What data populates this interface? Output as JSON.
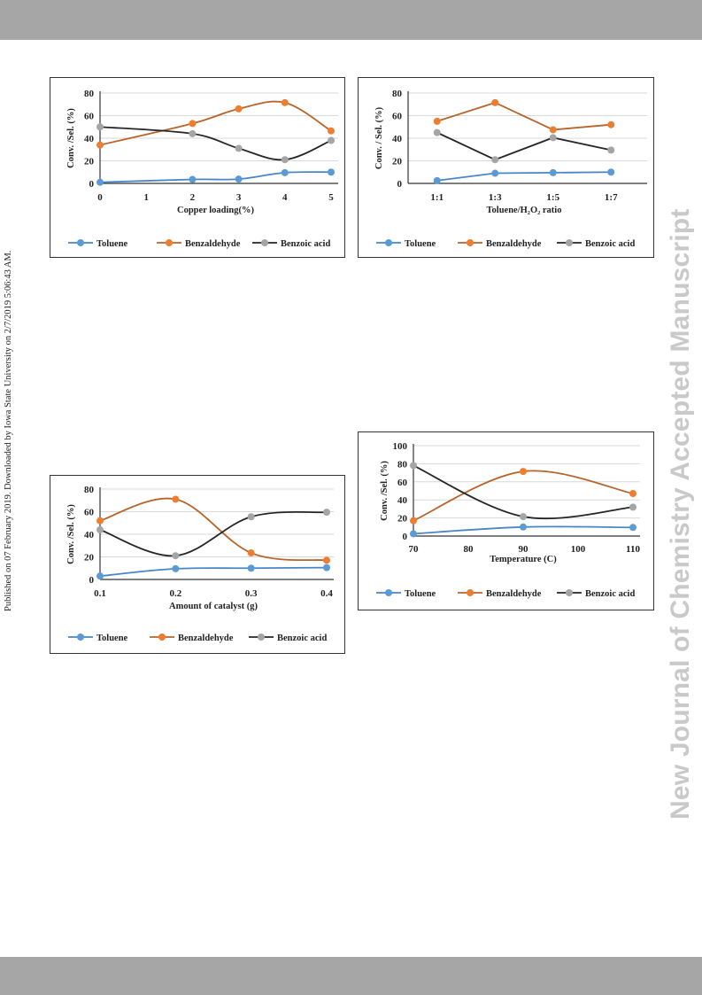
{
  "sidebar": {
    "published_note": "Published on 07 February 2019. Downloaded by Iowa State University on 2/7/2019 5:06:43 AM.",
    "watermark": "New Journal of Chemistry Accepted Manuscript"
  },
  "colors": {
    "toluene": "#5b9bd5",
    "benzaldehyde": "#ed7d31",
    "benzoic_acid": "#a5a5a5",
    "benzoic_acid_line": "#262626",
    "toluene_line": "#4a86c5",
    "benzaldehyde_line": "#b8642a"
  },
  "chart_data": [
    {
      "type": "line",
      "xlabel": "Copper loading(%)",
      "ylabel": "Conv. /Sel.  (%)",
      "x_ticks": [
        "0",
        "1",
        "2",
        "3",
        "4",
        "5"
      ],
      "y_ticks": [
        "0",
        "20",
        "40",
        "60",
        "80"
      ],
      "xlim": [
        0,
        5
      ],
      "ylim": [
        0,
        80
      ],
      "smooth": true,
      "series": [
        {
          "name": "Toluene",
          "x": [
            0,
            2,
            3,
            4,
            5
          ],
          "values": [
            1,
            3.5,
            3.8,
            9.5,
            10
          ]
        },
        {
          "name": "Benzaldehyde",
          "x": [
            0,
            2,
            3,
            4,
            5
          ],
          "values": [
            34,
            53,
            66,
            71.5,
            46.5
          ]
        },
        {
          "name": "Benzoic acid",
          "x": [
            0,
            2,
            3,
            4,
            5
          ],
          "values": [
            50,
            44,
            31,
            21,
            38
          ]
        }
      ]
    },
    {
      "type": "line",
      "xlabel": "Toluene/H₂O₂  ratio",
      "ylabel": "Conv. / Sel. (%)",
      "x_ticks": [
        "1:1",
        "1:3",
        "1:5",
        "1:7"
      ],
      "y_ticks": [
        "0",
        "20",
        "40",
        "60",
        "80"
      ],
      "xlim": [
        0.5,
        4.5
      ],
      "ylim": [
        0,
        80
      ],
      "smooth": false,
      "series": [
        {
          "name": "Toluene",
          "x": [
            1,
            2,
            3,
            4
          ],
          "values": [
            2.5,
            9,
            9.5,
            10
          ]
        },
        {
          "name": "Benzaldehyde",
          "x": [
            1,
            2,
            3,
            4
          ],
          "values": [
            55,
            71.5,
            47.5,
            52
          ]
        },
        {
          "name": "Benzoic acid",
          "x": [
            1,
            2,
            3,
            4
          ],
          "values": [
            45,
            21,
            40.5,
            29.5
          ]
        }
      ]
    },
    {
      "type": "line",
      "xlabel": "Amount of catalyst (g)",
      "ylabel": "Conv. /Sel.  (%)",
      "x_ticks": [
        "0.1",
        "0.2",
        "0.3",
        "0.4"
      ],
      "y_ticks": [
        "0",
        "20",
        "40",
        "60",
        "80"
      ],
      "xlim": [
        0.1,
        0.4
      ],
      "ylim": [
        0,
        80
      ],
      "smooth": true,
      "series": [
        {
          "name": "Toluene",
          "x": [
            0.1,
            0.2,
            0.3,
            0.4
          ],
          "values": [
            3,
            9.5,
            10,
            10.5
          ]
        },
        {
          "name": "Benzaldehyde",
          "x": [
            0.1,
            0.2,
            0.3,
            0.4
          ],
          "values": [
            52,
            71,
            23.5,
            17
          ]
        },
        {
          "name": "Benzoic acid",
          "x": [
            0.1,
            0.2,
            0.3,
            0.4
          ],
          "values": [
            44,
            21,
            55.5,
            59.5
          ]
        }
      ]
    },
    {
      "type": "line",
      "xlabel": "Temperature (C)",
      "ylabel": "Conv. /Sel.  (%)",
      "x_ticks": [
        "70",
        "80",
        "90",
        "100",
        "110"
      ],
      "y_ticks": [
        "0",
        "20",
        "40",
        "60",
        "80",
        "100"
      ],
      "xlim": [
        70,
        110
      ],
      "ylim": [
        0,
        100
      ],
      "smooth": true,
      "series": [
        {
          "name": "Toluene",
          "x": [
            70,
            90,
            110
          ],
          "values": [
            2.5,
            10,
            9.5
          ]
        },
        {
          "name": "Benzaldehyde",
          "x": [
            70,
            90,
            110
          ],
          "values": [
            17,
            71.5,
            47
          ]
        },
        {
          "name": "Benzoic acid",
          "x": [
            70,
            90,
            110
          ],
          "values": [
            78,
            21.5,
            32
          ]
        }
      ]
    }
  ]
}
